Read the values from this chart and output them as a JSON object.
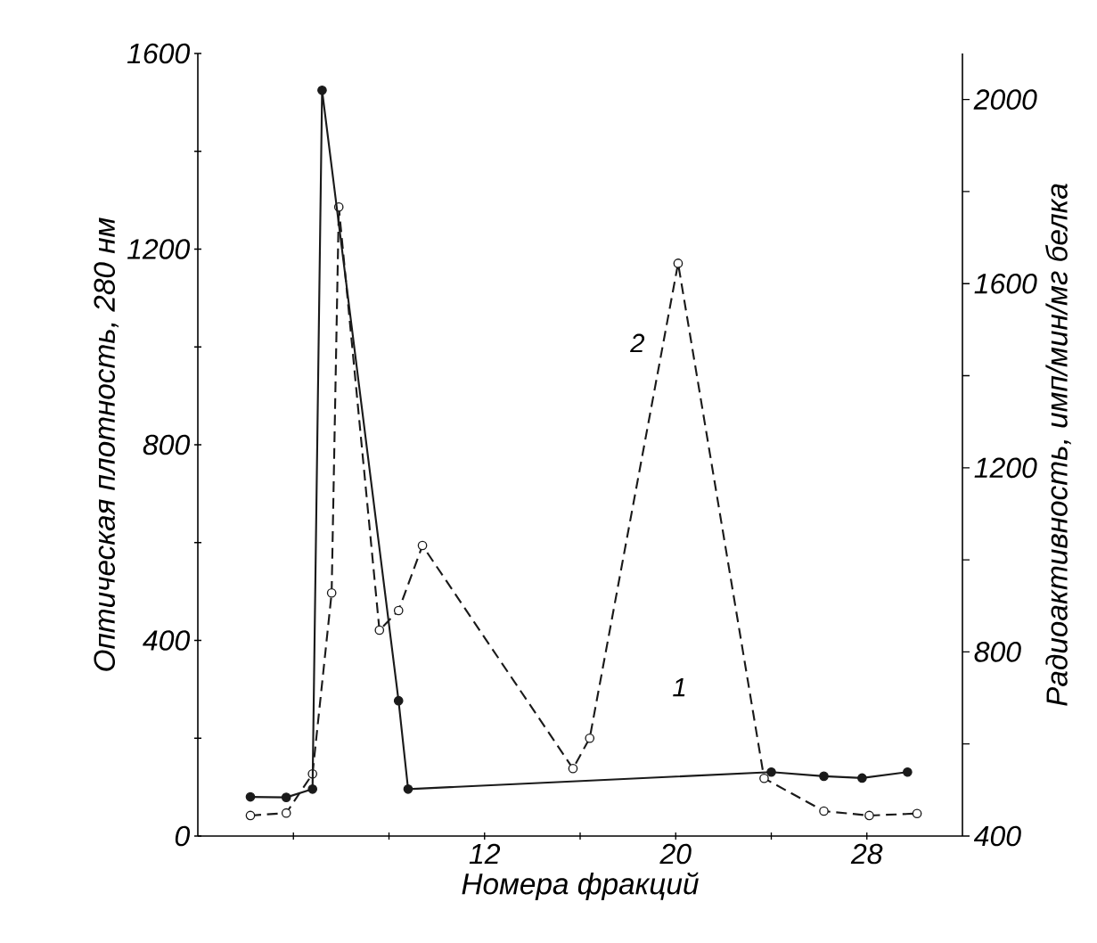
{
  "chart_data": {
    "type": "line",
    "xlabel": "Номера фракций",
    "ylabel": "Оптическая плотность, 280 нм",
    "y2label": "Радиоактивность, имп/мин/мг белка",
    "xlim": [
      0,
      32
    ],
    "xticks": [
      {
        "value": 4,
        "label": null
      },
      {
        "value": 8,
        "label": null
      },
      12,
      {
        "value": 16,
        "label": null
      },
      20,
      {
        "value": 24,
        "label": null
      },
      28
    ],
    "ylim": [
      0,
      1600
    ],
    "yticks": [
      0,
      {
        "value": 200,
        "label": null
      },
      400,
      {
        "value": 600,
        "label": null
      },
      800,
      {
        "value": 1000,
        "label": null
      },
      1200,
      {
        "value": 1400,
        "label": null
      },
      1600
    ],
    "y2lim": [
      400,
      2100
    ],
    "y2ticks": [
      400,
      {
        "value": 600,
        "label": null
      },
      800,
      {
        "value": 1000,
        "label": null
      },
      1200,
      {
        "value": 1400,
        "label": null
      },
      1600,
      {
        "value": 1800,
        "label": null
      },
      2000
    ],
    "grid": false,
    "marker": "circle",
    "series": [
      {
        "color": "#1a1a1a",
        "axis": "y2",
        "line_style": "solid",
        "x": [
          2.2,
          3.7,
          4.8,
          5.2,
          8.4,
          8.8,
          24,
          26.2,
          27.8,
          29.7
        ],
        "values": [
          485,
          484,
          502,
          2020,
          694,
          502,
          539,
          530,
          526,
          539
        ]
      },
      {
        "color": "#1a1a1a",
        "line_style": "dashed",
        "x": [
          2.2,
          3.7,
          4.8,
          5.6,
          5.9,
          7.6,
          8.4,
          9.4,
          15.7,
          16.4,
          20.1,
          23.7,
          26.2,
          28.1,
          30.1
        ],
        "values": [
          42,
          47,
          127,
          497,
          1286,
          421,
          461,
          594,
          138,
          200,
          1171,
          118,
          51,
          42,
          46
        ]
      }
    ],
    "annotations": [
      "1",
      "2"
    ]
  }
}
